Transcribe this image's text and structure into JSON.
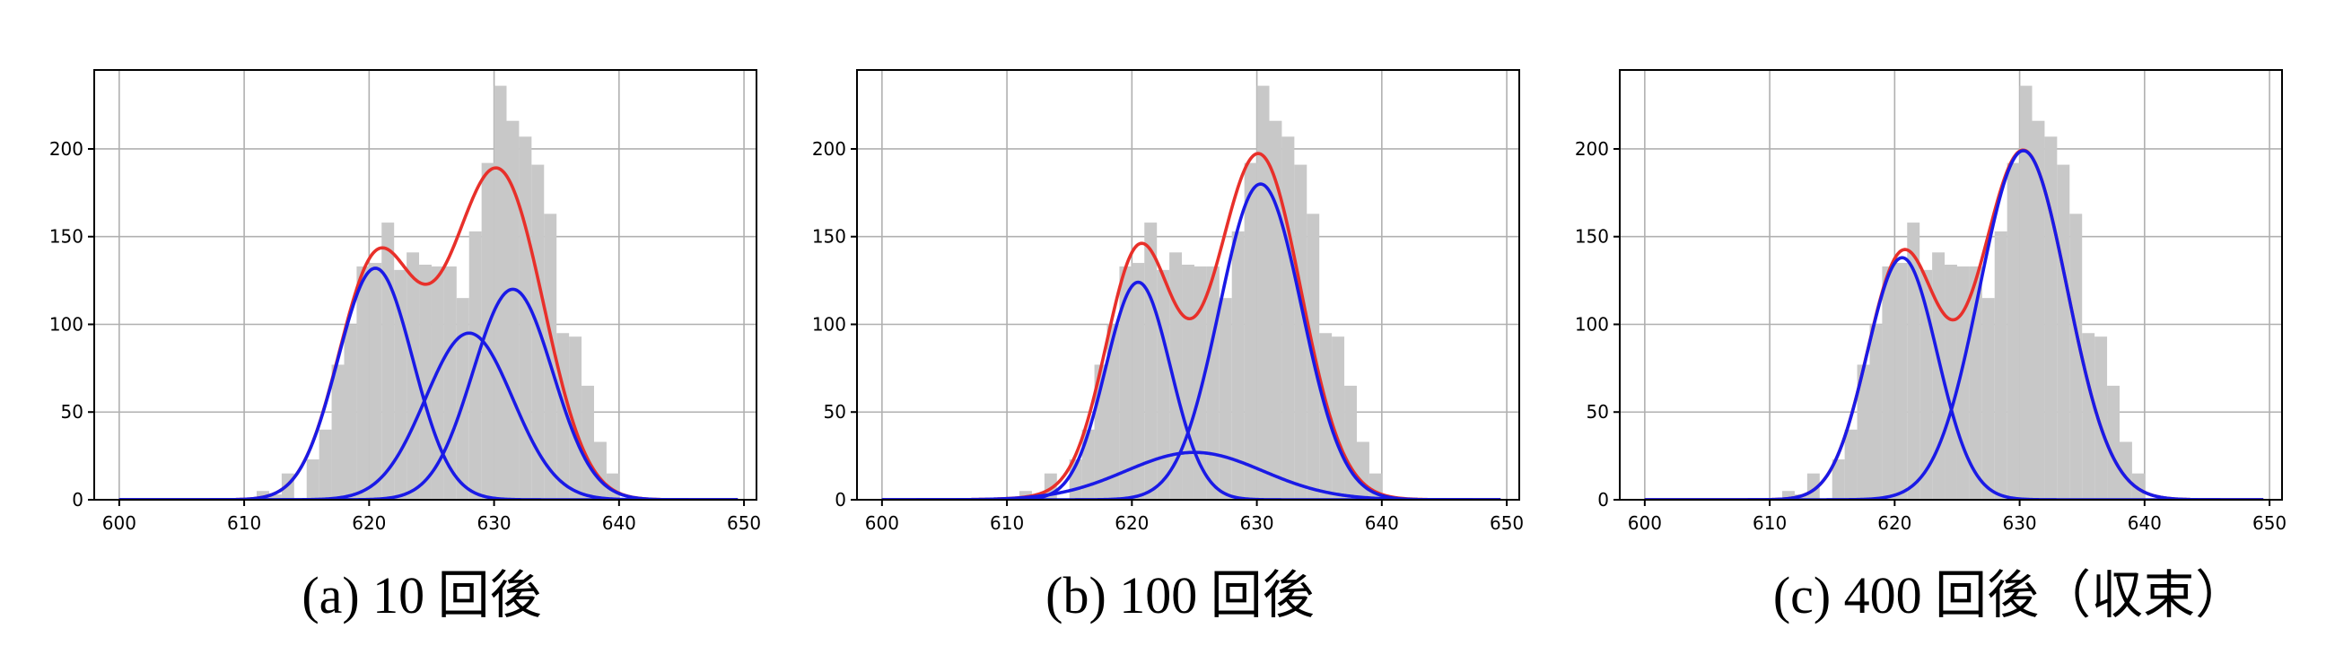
{
  "chart_data": [
    {
      "type": "bar",
      "caption": "(a) 10 回後",
      "xlim": [
        598,
        651
      ],
      "ylim": [
        0,
        245
      ],
      "xticks": [
        600,
        610,
        620,
        630,
        640,
        650
      ],
      "yticks": [
        0,
        50,
        100,
        150,
        200
      ],
      "grid": true,
      "histogram": {
        "bin_width": 1,
        "bin_starts": [
          611,
          612,
          613,
          614,
          615,
          616,
          617,
          618,
          619,
          620,
          621,
          622,
          623,
          624,
          625,
          626,
          627,
          628,
          629,
          630,
          631,
          632,
          633,
          634,
          635,
          636,
          637,
          638,
          639
        ],
        "counts": [
          5,
          3,
          15,
          0,
          23,
          40,
          77,
          100,
          133,
          135,
          158,
          131,
          141,
          134,
          133,
          133,
          115,
          153,
          192,
          236,
          216,
          207,
          191,
          163,
          95,
          93,
          65,
          33,
          15
        ]
      },
      "components": [
        {
          "mean": 620.5,
          "sd": 3.0,
          "peak": 132
        },
        {
          "mean": 628.0,
          "sd": 3.5,
          "peak": 95
        },
        {
          "mean": 631.5,
          "sd": 3.2,
          "peak": 120
        }
      ],
      "total_color": "#e8302a",
      "component_color": "#1a1ae6",
      "bar_color": "#c8c8c8"
    },
    {
      "type": "bar",
      "caption": "(b) 100 回後",
      "xlim": [
        598,
        651
      ],
      "ylim": [
        0,
        245
      ],
      "xticks": [
        600,
        610,
        620,
        630,
        640,
        650
      ],
      "yticks": [
        0,
        50,
        100,
        150,
        200
      ],
      "grid": true,
      "histogram": {
        "bin_width": 1,
        "bin_starts": [
          611,
          612,
          613,
          614,
          615,
          616,
          617,
          618,
          619,
          620,
          621,
          622,
          623,
          624,
          625,
          626,
          627,
          628,
          629,
          630,
          631,
          632,
          633,
          634,
          635,
          636,
          637,
          638,
          639
        ],
        "counts": [
          5,
          3,
          15,
          0,
          23,
          40,
          77,
          100,
          133,
          135,
          158,
          131,
          141,
          134,
          133,
          133,
          115,
          153,
          192,
          236,
          216,
          207,
          191,
          163,
          95,
          93,
          65,
          33,
          15
        ]
      },
      "components": [
        {
          "mean": 620.5,
          "sd": 2.6,
          "peak": 124
        },
        {
          "mean": 625.0,
          "sd": 5.5,
          "peak": 27
        },
        {
          "mean": 630.3,
          "sd": 3.3,
          "peak": 180
        }
      ],
      "total_color": "#e8302a",
      "component_color": "#1a1ae6",
      "bar_color": "#c8c8c8"
    },
    {
      "type": "bar",
      "caption": "(c) 400 回後（収束）",
      "xlim": [
        598,
        651
      ],
      "ylim": [
        0,
        245
      ],
      "xticks": [
        600,
        610,
        620,
        630,
        640,
        650
      ],
      "yticks": [
        0,
        50,
        100,
        150,
        200
      ],
      "grid": true,
      "histogram": {
        "bin_width": 1,
        "bin_starts": [
          611,
          612,
          613,
          614,
          615,
          616,
          617,
          618,
          619,
          620,
          621,
          622,
          623,
          624,
          625,
          626,
          627,
          628,
          629,
          630,
          631,
          632,
          633,
          634,
          635,
          636,
          637,
          638,
          639
        ],
        "counts": [
          5,
          3,
          15,
          0,
          23,
          40,
          77,
          100,
          133,
          135,
          158,
          131,
          141,
          134,
          133,
          133,
          115,
          153,
          192,
          236,
          216,
          207,
          191,
          163,
          95,
          93,
          65,
          33,
          15
        ]
      },
      "components": [
        {
          "mean": 620.6,
          "sd": 2.8,
          "peak": 138
        },
        {
          "mean": 630.3,
          "sd": 3.5,
          "peak": 199
        }
      ],
      "total_color": "#e8302a",
      "component_color": "#1a1ae6",
      "bar_color": "#c8c8c8"
    }
  ]
}
